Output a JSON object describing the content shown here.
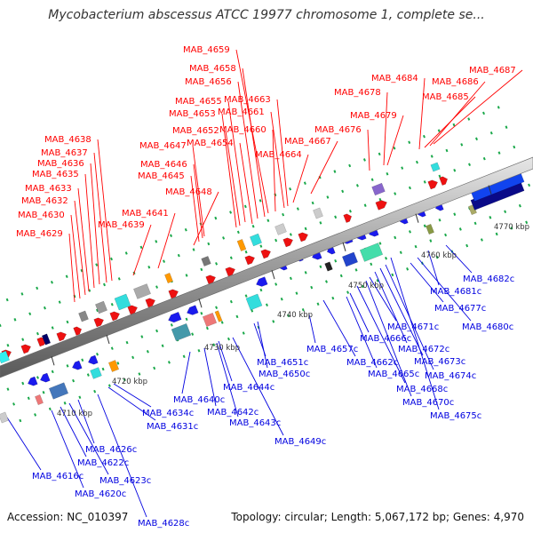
{
  "title": "Mycobacterium abscessus ATCC 19977 chromosome 1, complete se...",
  "footer": {
    "accession": "Accession: NC_010397",
    "summary": "Topology: circular; Length: 5,067,172 bp; Genes: 4,970"
  },
  "colors": {
    "forward_label": "#ff0000",
    "reverse_label": "#0000e0",
    "backbone": "#909090",
    "tick_major": "#2e7d32",
    "tick_minor": "#1aa84a"
  },
  "ticks": [
    "4710 kbp",
    "4720 kbp",
    "4730 kbp",
    "4740 kbp",
    "4750 kbp",
    "4760 kbp",
    "4770 kbp"
  ],
  "forward_labels": [
    "MAB_4629",
    "MAB_4630",
    "MAB_4632",
    "MAB_4633",
    "MAB_4635",
    "MAB_4636",
    "MAB_4637",
    "MAB_4638",
    "MAB_4639",
    "MAB_4641",
    "MAB_4648",
    "MAB_4645",
    "MAB_4646",
    "MAB_4647",
    "MAB_4654",
    "MAB_4652",
    "MAB_4653",
    "MAB_4655",
    "MAB_4656",
    "MAB_4658",
    "MAB_4659",
    "MAB_4660",
    "MAB_4661",
    "MAB_4663",
    "MAB_4664",
    "MAB_4667",
    "MAB_4676",
    "MAB_4679",
    "MAB_4678",
    "MAB_4684",
    "MAB_4685",
    "MAB_4686",
    "MAB_4687"
  ],
  "reverse_labels": [
    "MAB_4616c",
    "MAB_4620c",
    "MAB_4622c",
    "MAB_4623c",
    "MAB_4626c",
    "MAB_4628c",
    "MAB_4631c",
    "MAB_4634c",
    "MAB_4640c",
    "MAB_4642c",
    "MAB_4643c",
    "MAB_4644c",
    "MAB_4649c",
    "MAB_4650c",
    "MAB_4651c",
    "MAB_4657c",
    "MAB_4662c",
    "MAB_4665c",
    "MAB_4666c",
    "MAB_4668c",
    "MAB_4670c",
    "MAB_4671c",
    "MAB_4672c",
    "MAB_4673c",
    "MAB_4674c",
    "MAB_4675c",
    "MAB_4677c",
    "MAB_4680c",
    "MAB_4681c",
    "MAB_4682c"
  ]
}
